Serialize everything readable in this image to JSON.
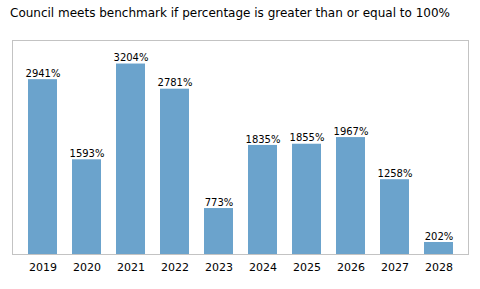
{
  "chart_data": {
    "type": "bar",
    "title": "Council meets benchmark if percentage is greater than or equal to 100%",
    "categories": [
      "2019",
      "2020",
      "2021",
      "2022",
      "2023",
      "2024",
      "2025",
      "2026",
      "2027",
      "2028"
    ],
    "values": [
      2941,
      1593,
      3204,
      2781,
      773,
      1835,
      1855,
      1967,
      1258,
      202
    ],
    "value_labels": [
      "2941%",
      "1593%",
      "3204%",
      "2781%",
      "773%",
      "1835%",
      "1855%",
      "1967%",
      "1258%",
      "202%"
    ],
    "data_labels": true,
    "color": "#6BA3CC",
    "ylim": [
      0,
      3600
    ],
    "grid": false,
    "tick_labels": "x"
  }
}
